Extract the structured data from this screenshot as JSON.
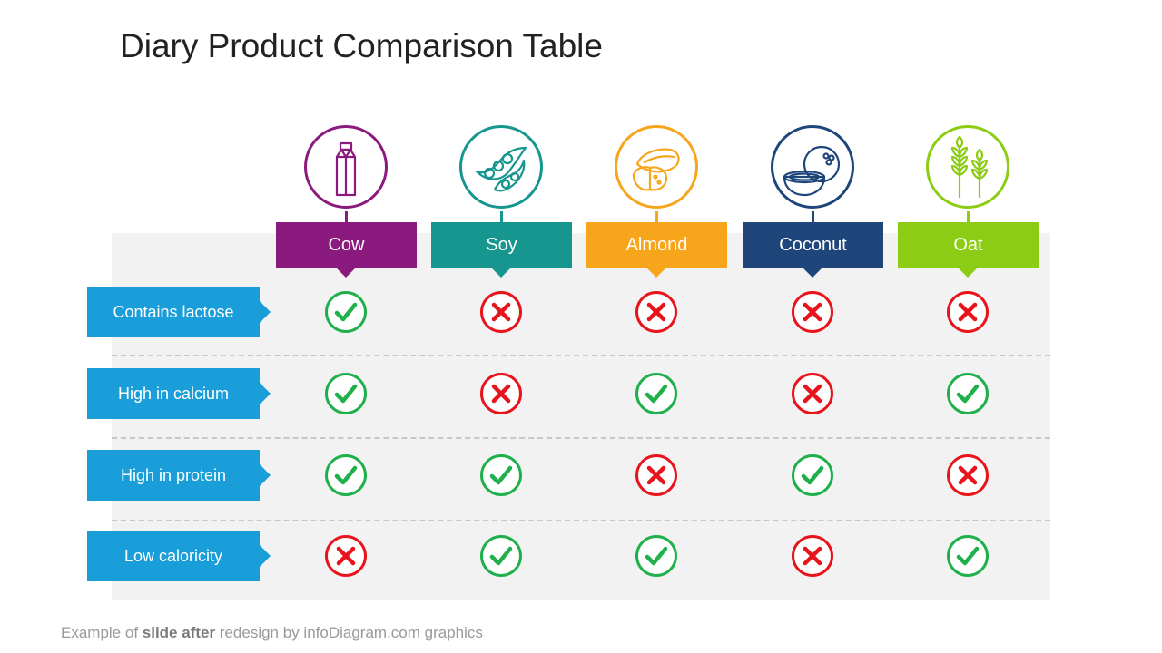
{
  "title": "Diary Product Comparison Table",
  "colors": {
    "yes": "#1faf4b",
    "no": "#e8141b",
    "row_label": "#1a9ed9"
  },
  "columns": [
    {
      "label": "Cow",
      "color": "#8b1a7e",
      "icon": "milk-carton-icon"
    },
    {
      "label": "Soy",
      "color": "#16968f",
      "icon": "soybean-pod-icon"
    },
    {
      "label": "Almond",
      "color": "#f7a51a",
      "icon": "almond-icon"
    },
    {
      "label": "Coconut",
      "color": "#1f467a",
      "icon": "coconut-icon"
    },
    {
      "label": "Oat",
      "color": "#8ccc14",
      "icon": "oat-wheat-icon"
    }
  ],
  "rows": [
    {
      "label": "Contains lactose",
      "values": [
        true,
        false,
        false,
        false,
        false
      ]
    },
    {
      "label": "High in calcium",
      "values": [
        true,
        false,
        true,
        false,
        true
      ]
    },
    {
      "label": "High in protein",
      "values": [
        true,
        true,
        false,
        true,
        false
      ]
    },
    {
      "label": "Low caloricity",
      "values": [
        false,
        true,
        true,
        false,
        true
      ]
    }
  ],
  "footer": {
    "prefix": "Example of ",
    "bold": "slide after",
    "suffix": " redesign by infoDiagram.com graphics"
  }
}
